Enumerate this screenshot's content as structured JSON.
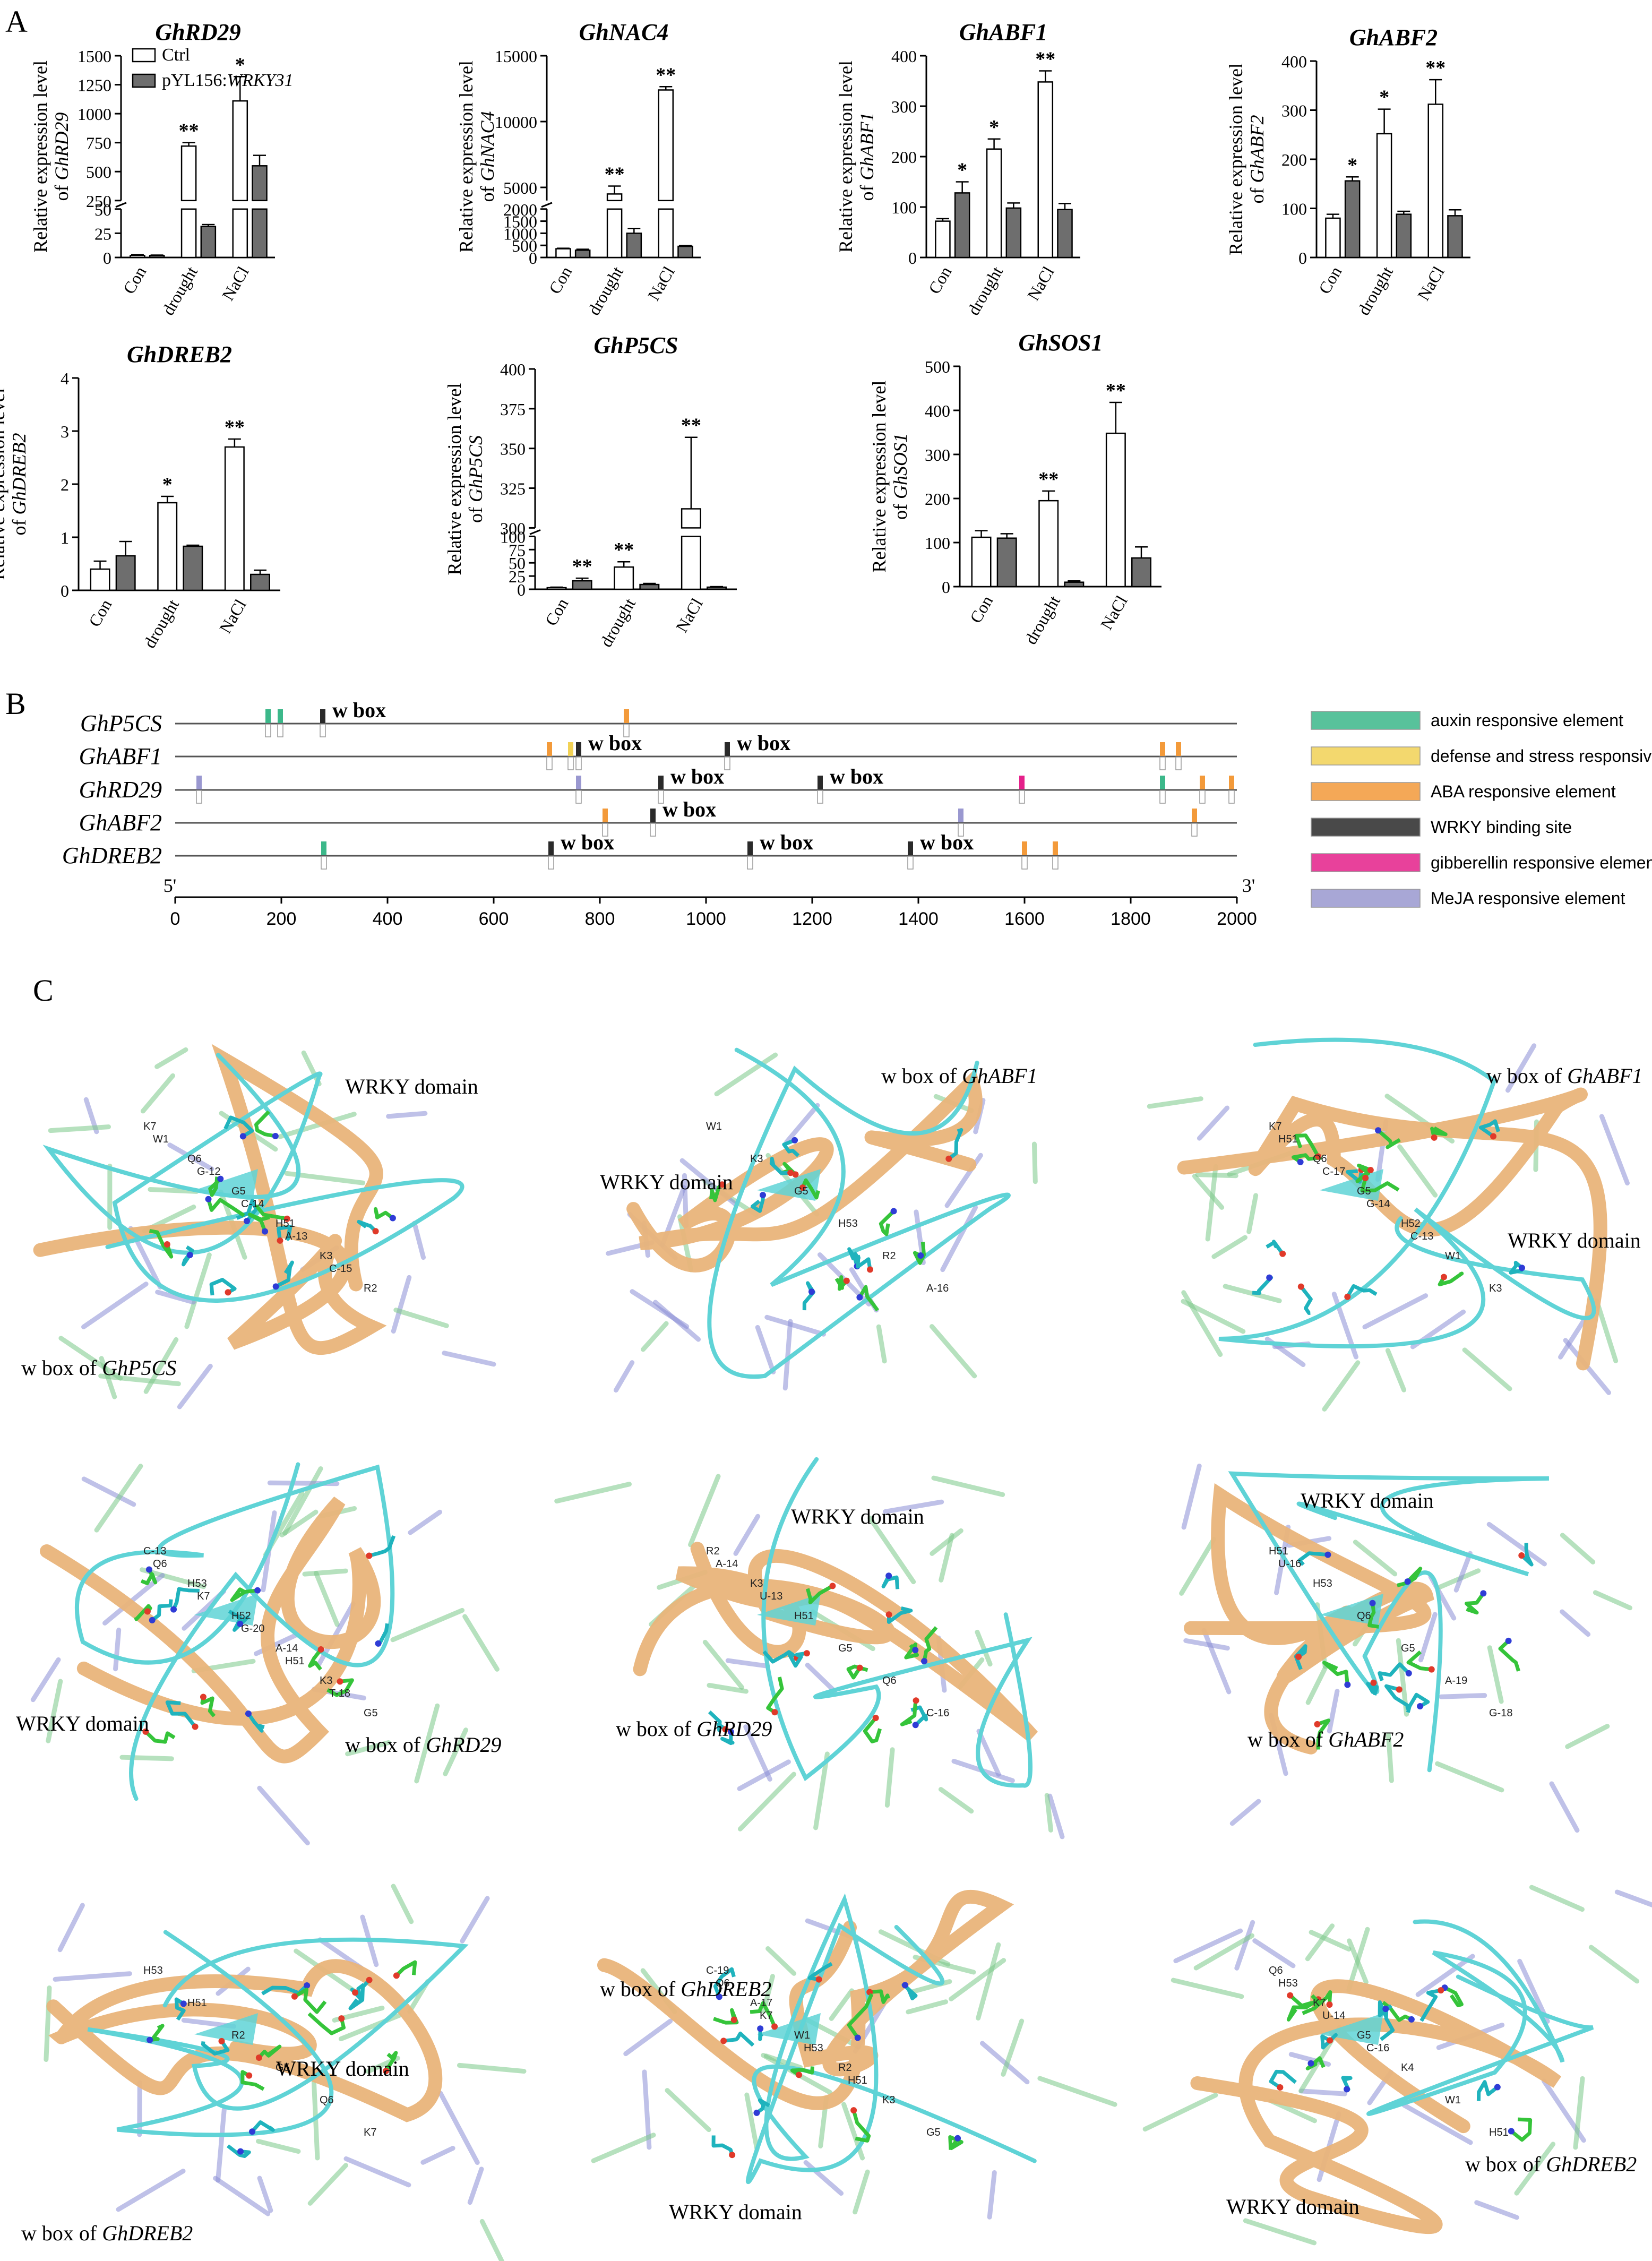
{
  "panel_labels": {
    "a": "A",
    "b": "B",
    "c": "C"
  },
  "ylabel_prefix": "Relative expression level",
  "ylabel_of": "of",
  "colors": {
    "ctrl": "#ffffff",
    "wrky": "#6e6e6e",
    "axis": "#000000"
  },
  "bar_legend": {
    "ctrl": "Ctrl",
    "wrky_prefix": "pYL156:",
    "wrky_gene": "WRKY31"
  },
  "chart_data": [
    {
      "type": "bar",
      "title": "GhRD29",
      "categories": [
        "Con",
        "drought",
        "NaCl"
      ],
      "series": [
        {
          "name": "Ctrl",
          "values": [
            2,
            720,
            1110
          ],
          "errors": [
            1,
            30,
            210
          ],
          "signif": [
            "",
            "**",
            "*"
          ]
        },
        {
          "name": "pYL156:WRKY31",
          "values": [
            2,
            32,
            550
          ],
          "errors": [
            0.5,
            2,
            90
          ],
          "signif": [
            "",
            "",
            ""
          ]
        }
      ],
      "ylim": [
        0,
        1500
      ],
      "broken_axis": {
        "break": [
          50,
          250
        ],
        "lower_ticks": [
          0,
          25,
          50
        ],
        "upper_ticks": [
          250,
          500,
          750,
          1000,
          1250,
          1500
        ]
      },
      "grid": false
    },
    {
      "type": "bar",
      "title": "GhNAC4",
      "categories": [
        "Con",
        "drought",
        "NaCl"
      ],
      "series": [
        {
          "name": "Ctrl",
          "values": [
            360,
            4500,
            12400
          ],
          "errors": [
            20,
            600,
            250
          ],
          "signif": [
            "",
            "**",
            "**"
          ]
        },
        {
          "name": "pYL156:WRKY31",
          "values": [
            300,
            1000,
            460
          ],
          "errors": [
            40,
            200,
            40
          ],
          "signif": [
            "",
            "",
            ""
          ]
        }
      ],
      "ylim": [
        0,
        15000
      ],
      "broken_axis": {
        "break": [
          2000,
          4000
        ],
        "lower_ticks": [
          0,
          500,
          1000,
          1500,
          2000
        ],
        "upper_ticks": [
          5000,
          10000,
          15000
        ]
      },
      "grid": false
    },
    {
      "type": "bar",
      "title": "GhABF1",
      "categories": [
        "Con",
        "drought",
        "NaCl"
      ],
      "series": [
        {
          "name": "Ctrl",
          "values": [
            72,
            215,
            348
          ],
          "errors": [
            5,
            20,
            22
          ],
          "signif": [
            "",
            "*",
            "**"
          ]
        },
        {
          "name": "pYL156:WRKY31",
          "values": [
            128,
            98,
            95
          ],
          "errors": [
            22,
            10,
            12
          ],
          "signif": [
            "*",
            "",
            ""
          ]
        }
      ],
      "ylim": [
        0,
        400
      ],
      "yticks": [
        0,
        100,
        200,
        300,
        400
      ],
      "grid": false
    },
    {
      "type": "bar",
      "title": "GhABF2",
      "categories": [
        "Con",
        "drought",
        "NaCl"
      ],
      "series": [
        {
          "name": "Ctrl",
          "values": [
            80,
            252,
            312
          ],
          "errors": [
            8,
            50,
            50
          ],
          "signif": [
            "",
            "*",
            "**"
          ]
        },
        {
          "name": "pYL156:WRKY31",
          "values": [
            156,
            88,
            85
          ],
          "errors": [
            8,
            6,
            12
          ],
          "signif": [
            "*",
            "",
            ""
          ]
        }
      ],
      "ylim": [
        0,
        400
      ],
      "yticks": [
        0,
        100,
        200,
        300,
        400
      ],
      "grid": false
    },
    {
      "type": "bar",
      "title": "GhDREB2",
      "categories": [
        "Con",
        "drought",
        "NaCl"
      ],
      "series": [
        {
          "name": "Ctrl",
          "values": [
            0.4,
            1.65,
            2.7
          ],
          "errors": [
            0.15,
            0.12,
            0.15
          ],
          "signif": [
            "",
            "*",
            "**"
          ]
        },
        {
          "name": "pYL156:WRKY31",
          "values": [
            0.65,
            0.83,
            0.3
          ],
          "errors": [
            0.27,
            0.02,
            0.08
          ],
          "signif": [
            "",
            "",
            ""
          ]
        }
      ],
      "ylim": [
        0,
        4
      ],
      "yticks": [
        0,
        1,
        2,
        3,
        4
      ],
      "grid": false
    },
    {
      "type": "bar",
      "title": "GhP5CS",
      "categories": [
        "Con",
        "drought",
        "NaCl"
      ],
      "series": [
        {
          "name": "Ctrl",
          "values": [
            3,
            42,
            312
          ],
          "errors": [
            1,
            10,
            45
          ],
          "signif": [
            "",
            "**",
            "**"
          ]
        },
        {
          "name": "pYL156:WRKY31",
          "values": [
            16,
            9,
            4
          ],
          "errors": [
            5,
            2,
            1
          ],
          "signif": [
            "**",
            "",
            ""
          ]
        }
      ],
      "ylim": [
        0,
        400
      ],
      "broken_axis": {
        "break": [
          100,
          300
        ],
        "lower_ticks": [
          0,
          25,
          50,
          75,
          100
        ],
        "upper_ticks": [
          300,
          325,
          350,
          375,
          400
        ]
      },
      "grid": false
    },
    {
      "type": "bar",
      "title": "GhSOS1",
      "categories": [
        "Con",
        "drought",
        "NaCl"
      ],
      "series": [
        {
          "name": "Ctrl",
          "values": [
            112,
            195,
            348
          ],
          "errors": [
            15,
            22,
            70
          ],
          "signif": [
            "",
            "**",
            "**"
          ]
        },
        {
          "name": "pYL156:WRKY31",
          "values": [
            110,
            10,
            65
          ],
          "errors": [
            10,
            3,
            25
          ],
          "signif": [
            "",
            "",
            ""
          ]
        }
      ],
      "ylim": [
        0,
        500
      ],
      "yticks": [
        0,
        100,
        200,
        300,
        400,
        500
      ],
      "grid": false
    }
  ],
  "promoter_map": {
    "genes": [
      "GhP5CS",
      "GhABF1",
      "GhRD29",
      "GhABF2",
      "GhDREB2"
    ],
    "xlim": [
      0,
      2000
    ],
    "xticks": [
      0,
      200,
      400,
      600,
      800,
      1000,
      1200,
      1400,
      1600,
      1800,
      2000
    ],
    "end5": "5'",
    "end3": "3'",
    "wbox_label": "w box",
    "element_types": [
      {
        "key": "auxin",
        "label": "auxin responsive element",
        "color": "#3cb88a"
      },
      {
        "key": "defense",
        "label": "defense and stress responsiveness",
        "color": "#f2d255"
      },
      {
        "key": "aba",
        "label": "ABA responsive element",
        "color": "#f39a3a"
      },
      {
        "key": "wrky",
        "label": "WRKY binding site",
        "color": "#2a2a2a"
      },
      {
        "key": "gib",
        "label": "gibberellin responsive element",
        "color": "#e5208a"
      },
      {
        "key": "meja",
        "label": "MeJA responsive element",
        "color": "#9a98d0"
      }
    ],
    "elements": [
      {
        "gene": 0,
        "pos": 175,
        "type": "auxin"
      },
      {
        "gene": 0,
        "pos": 198,
        "type": "auxin"
      },
      {
        "gene": 0,
        "pos": 278,
        "type": "wrky",
        "label": true
      },
      {
        "gene": 0,
        "pos": 850,
        "type": "aba"
      },
      {
        "gene": 1,
        "pos": 705,
        "type": "aba"
      },
      {
        "gene": 1,
        "pos": 745,
        "type": "defense"
      },
      {
        "gene": 1,
        "pos": 760,
        "type": "wrky",
        "label": true
      },
      {
        "gene": 1,
        "pos": 1040,
        "type": "wrky",
        "label": true
      },
      {
        "gene": 1,
        "pos": 1860,
        "type": "aba"
      },
      {
        "gene": 1,
        "pos": 1890,
        "type": "aba"
      },
      {
        "gene": 2,
        "pos": 45,
        "type": "meja"
      },
      {
        "gene": 2,
        "pos": 760,
        "type": "meja"
      },
      {
        "gene": 2,
        "pos": 915,
        "type": "wrky",
        "label": true
      },
      {
        "gene": 2,
        "pos": 1215,
        "type": "wrky",
        "label": true
      },
      {
        "gene": 2,
        "pos": 1595,
        "type": "gib"
      },
      {
        "gene": 2,
        "pos": 1860,
        "type": "auxin"
      },
      {
        "gene": 2,
        "pos": 1935,
        "type": "aba"
      },
      {
        "gene": 2,
        "pos": 1990,
        "type": "aba"
      },
      {
        "gene": 3,
        "pos": 810,
        "type": "aba"
      },
      {
        "gene": 3,
        "pos": 900,
        "type": "wrky",
        "label": true
      },
      {
        "gene": 3,
        "pos": 1480,
        "type": "meja"
      },
      {
        "gene": 3,
        "pos": 1920,
        "type": "aba"
      },
      {
        "gene": 4,
        "pos": 280,
        "type": "auxin"
      },
      {
        "gene": 4,
        "pos": 708,
        "type": "wrky",
        "label": true
      },
      {
        "gene": 4,
        "pos": 1083,
        "type": "wrky",
        "label": true
      },
      {
        "gene": 4,
        "pos": 1385,
        "type": "wrky",
        "label": true
      },
      {
        "gene": 4,
        "pos": 1600,
        "type": "aba"
      },
      {
        "gene": 4,
        "pos": 1658,
        "type": "aba"
      }
    ]
  },
  "structures": {
    "wrky_domain": "WRKY domain",
    "wbox_prefix": "w box of",
    "panels": [
      {
        "gene": "GhP5CS",
        "residues": [
          "K7",
          "Q6",
          "G5",
          "H51",
          "K3",
          "R2",
          "W1",
          "G-12",
          "C-14",
          "A-13",
          "C-15"
        ]
      },
      {
        "gene": "GhABF1",
        "residues": [
          "W1",
          "K3",
          "G5",
          "H53",
          "R2",
          "A-16"
        ]
      },
      {
        "gene": "GhABF1",
        "residues": [
          "K7",
          "Q6",
          "G5",
          "H52",
          "W1",
          "K3",
          "H51",
          "C-17",
          "G-14",
          "C-13"
        ]
      },
      {
        "gene": "GhRD29",
        "residues": [
          "C-13",
          "H53",
          "H52",
          "A-14",
          "K3",
          "G5",
          "Q6",
          "K7",
          "G-20",
          "H51",
          "T-18"
        ]
      },
      {
        "gene": "GhRD29",
        "residues": [
          "R2",
          "K3",
          "H51",
          "G5",
          "Q6",
          "C-16",
          "A-14",
          "U-13"
        ]
      },
      {
        "gene": "GhABF2",
        "residues": [
          "H51",
          "H53",
          "Q6",
          "G5",
          "A-19",
          "G-18",
          "U-16"
        ]
      },
      {
        "gene": "GhDREB2",
        "residues": [
          "H53",
          "H51",
          "R2",
          "G5",
          "Q6",
          "K7"
        ]
      },
      {
        "gene": "GhDREB2",
        "residues": [
          "C-19",
          "A-17",
          "W1",
          "R2",
          "K3",
          "G5",
          "Q6",
          "K7",
          "H53",
          "H51"
        ]
      },
      {
        "gene": "GhDREB2",
        "residues": [
          "Q6",
          "K7",
          "G5",
          "K4",
          "W1",
          "H51",
          "H53",
          "U-14",
          "C-16"
        ]
      }
    ]
  }
}
